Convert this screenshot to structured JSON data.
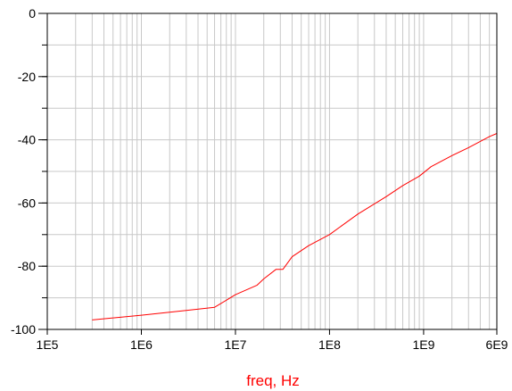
{
  "chart_data": {
    "type": "line",
    "x_scale": "log",
    "xlim": [
      100000,
      6000000000
    ],
    "ylim": [
      -100,
      0
    ],
    "xlabel": "freq, Hz",
    "ylabel": "",
    "x_ticks": [
      {
        "value": 100000,
        "label": "1E5"
      },
      {
        "value": 1000000,
        "label": "1E6"
      },
      {
        "value": 10000000,
        "label": "1E7"
      },
      {
        "value": 100000000,
        "label": "1E8"
      },
      {
        "value": 1000000000,
        "label": "1E9"
      },
      {
        "value": 6000000000,
        "label": "6E9"
      }
    ],
    "y_ticks": [
      {
        "value": 0,
        "label": "0"
      },
      {
        "value": -20,
        "label": "-20"
      },
      {
        "value": -40,
        "label": "-40"
      },
      {
        "value": -60,
        "label": "-60"
      },
      {
        "value": -80,
        "label": "-80"
      },
      {
        "value": -100,
        "label": "-100"
      }
    ],
    "grid": true,
    "series": [
      {
        "color": "#ff0000",
        "x": [
          300000,
          1000000,
          3000000,
          6000000,
          10000000,
          17000000,
          20000000,
          27000000,
          32000000,
          40000000,
          60000000,
          100000000,
          200000000,
          400000000,
          600000000,
          900000000,
          1200000000,
          2000000000,
          3000000000,
          4000000000,
          5000000000,
          6000000000
        ],
        "y": [
          -97,
          -95.5,
          -94,
          -93,
          -89,
          -86,
          -84,
          -81,
          -81,
          -77,
          -73.5,
          -70,
          -63.5,
          -58,
          -54.5,
          -51.5,
          -48.5,
          -45,
          -42.5,
          -40.5,
          -39,
          -38
        ]
      }
    ]
  },
  "colors": {
    "axis": "#000000",
    "grid": "#c8c8c8",
    "series": "#ff0000",
    "xlabel": "#ff0000"
  }
}
